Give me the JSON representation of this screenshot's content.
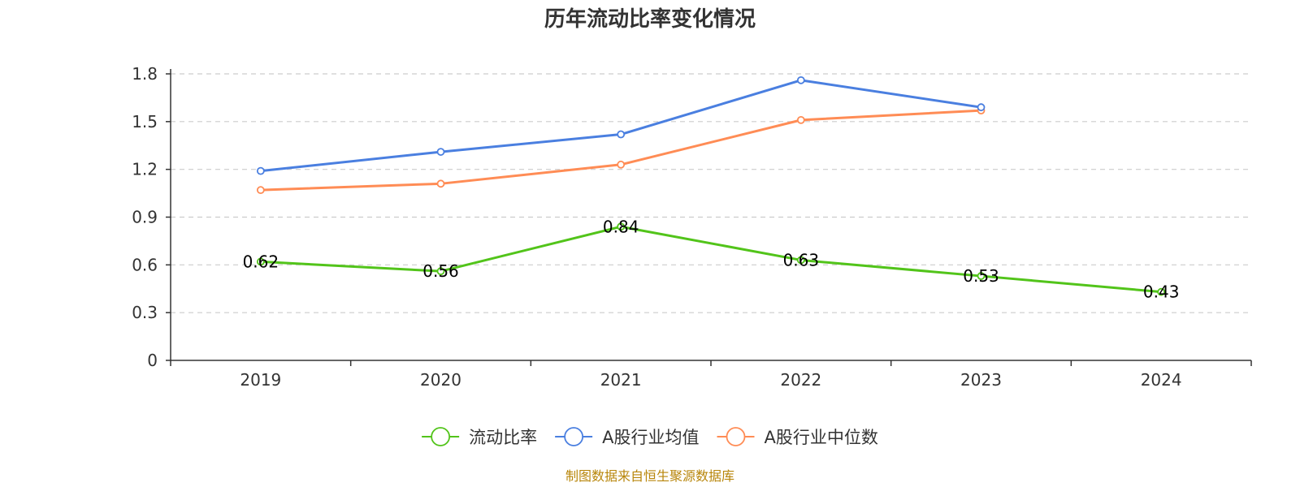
{
  "chart_data": {
    "type": "line",
    "title": "历年流动比率变化情况",
    "categories": [
      "2019",
      "2020",
      "2021",
      "2022",
      "2023",
      "2024"
    ],
    "ylim": [
      0,
      1.8
    ],
    "yticks": [
      "0",
      "0.3",
      "0.6",
      "0.9",
      "1.2",
      "1.5",
      "1.8"
    ],
    "grid": true,
    "legend_position": "bottom",
    "series": [
      {
        "name": "流动比率",
        "color": "#52c41a",
        "values": [
          0.62,
          0.56,
          0.84,
          0.63,
          0.53,
          0.43
        ],
        "labels": [
          "0.62",
          "0.56",
          "0.84",
          "0.63",
          "0.53",
          "0.43"
        ]
      },
      {
        "name": "A股行业均值",
        "color": "#4a7fe0",
        "values": [
          1.19,
          1.31,
          1.42,
          1.76,
          1.59,
          null
        ]
      },
      {
        "name": "A股行业中位数",
        "color": "#ff8c55",
        "values": [
          1.07,
          1.11,
          1.23,
          1.51,
          1.57,
          null
        ]
      }
    ],
    "source": "制图数据来自恒生聚源数据库"
  }
}
